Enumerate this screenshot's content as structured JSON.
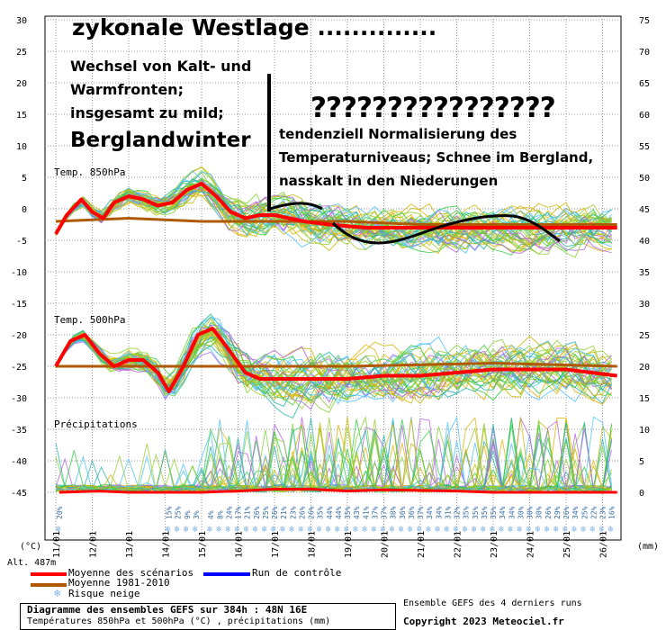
{
  "chart_data": {
    "type": "line",
    "title": "Diagramme des ensembles GEFS sur 384h : 48N 16E",
    "subtitle": "Températures 850hPa et 500hPa (°C) , précipitations (mm)",
    "left_axis_ticks": [
      30,
      25,
      20,
      15,
      10,
      5,
      0,
      -5,
      -10,
      -15,
      -20,
      -25,
      -30,
      -35,
      -40,
      -45
    ],
    "left_axis_unit": "(°C)",
    "right_axis_ticks": [
      75,
      70,
      65,
      60,
      55,
      50,
      45,
      40,
      35,
      30,
      25,
      20,
      15,
      10,
      5,
      0
    ],
    "right_axis_unit": "(mm)",
    "altitude_label": "Alt. 487m",
    "x_dates": [
      "11/01",
      "12/01",
      "13/01",
      "14/01",
      "15/01",
      "16/01",
      "17/01",
      "18/01",
      "19/01",
      "20/01",
      "21/01",
      "22/01",
      "23/01",
      "24/01",
      "25/01",
      "26/01"
    ],
    "panel_labels": [
      "Temp. 850hPa",
      "Temp. 500hPa",
      "Précipitations"
    ],
    "series": [
      {
        "name": "Moyenne des scénarios",
        "color": "#ff0000",
        "t850": [
          [
            0,
            -4
          ],
          [
            0.3,
            -1
          ],
          [
            0.7,
            1.5
          ],
          [
            1.0,
            -0.5
          ],
          [
            1.3,
            -1.5
          ],
          [
            1.6,
            1
          ],
          [
            2.0,
            2
          ],
          [
            2.4,
            1.5
          ],
          [
            2.8,
            0.5
          ],
          [
            3.2,
            1
          ],
          [
            3.6,
            3
          ],
          [
            4.0,
            4
          ],
          [
            4.4,
            2
          ],
          [
            4.8,
            -0.5
          ],
          [
            5.2,
            -1.5
          ],
          [
            5.6,
            -1
          ],
          [
            6.0,
            -1
          ],
          [
            6.4,
            -1.5
          ],
          [
            6.8,
            -2
          ],
          [
            7.5,
            -2.5
          ],
          [
            8.5,
            -3
          ],
          [
            9.5,
            -3
          ],
          [
            10.5,
            -3
          ],
          [
            11.5,
            -3
          ],
          [
            12.5,
            -3
          ],
          [
            13.5,
            -3
          ],
          [
            14.5,
            -3
          ],
          [
            15.4,
            -3
          ]
        ],
        "t500": [
          [
            0,
            -25
          ],
          [
            0.4,
            -21
          ],
          [
            0.8,
            -20
          ],
          [
            1.2,
            -23
          ],
          [
            1.6,
            -25
          ],
          [
            2.0,
            -24
          ],
          [
            2.4,
            -24
          ],
          [
            2.8,
            -26
          ],
          [
            3.1,
            -29
          ],
          [
            3.5,
            -25
          ],
          [
            3.9,
            -20
          ],
          [
            4.3,
            -19
          ],
          [
            4.7,
            -22
          ],
          [
            5.2,
            -26
          ],
          [
            5.6,
            -27
          ],
          [
            6.0,
            -27
          ],
          [
            7,
            -27
          ],
          [
            8,
            -27
          ],
          [
            9,
            -26.5
          ],
          [
            10,
            -26.5
          ],
          [
            11,
            -26
          ],
          [
            12,
            -25.5
          ],
          [
            13,
            -25.5
          ],
          [
            14,
            -25.5
          ],
          [
            15.4,
            -26.5
          ]
        ],
        "precip": [
          [
            0.1,
            -45
          ],
          [
            1.2,
            -44.8
          ],
          [
            2,
            -45
          ],
          [
            4,
            -45
          ],
          [
            5,
            -44.8
          ],
          [
            6,
            -44.5
          ],
          [
            7,
            -44.5
          ],
          [
            8,
            -44.8
          ],
          [
            9,
            -44.6
          ],
          [
            10,
            -44.7
          ],
          [
            11,
            -44.8
          ],
          [
            12,
            -45
          ],
          [
            13,
            -45
          ],
          [
            14,
            -45
          ],
          [
            15.4,
            -45
          ]
        ]
      },
      {
        "name": "Moyenne 1981-2010",
        "color": "#b05a00",
        "t850": [
          [
            0,
            -2
          ],
          [
            2,
            -1.5
          ],
          [
            4,
            -2
          ],
          [
            6,
            -2
          ],
          [
            8,
            -2
          ],
          [
            10,
            -2.5
          ],
          [
            12,
            -2.5
          ],
          [
            14,
            -2.5
          ],
          [
            15.4,
            -2.5
          ]
        ],
        "t500": [
          [
            0,
            -25
          ],
          [
            4,
            -25
          ],
          [
            8,
            -25
          ],
          [
            12,
            -24.5
          ],
          [
            15.4,
            -25
          ]
        ],
        "precip": []
      },
      {
        "name": "Run de contrôle",
        "color": "#0000ff",
        "t850": [],
        "t500": [],
        "precip": []
      }
    ],
    "risque_neige_label": "Risque neige",
    "snow_risk": [
      {
        "x": 0.1,
        "pct": "20%"
      },
      {
        "x": 3.1,
        "pct": "15%"
      },
      {
        "x": 3.35,
        "pct": "25%"
      },
      {
        "x": 3.6,
        "pct": "9%"
      },
      {
        "x": 3.85,
        "pct": "3%"
      },
      {
        "x": 4.25,
        "pct": "4%"
      },
      {
        "x": 4.5,
        "pct": "8%"
      },
      {
        "x": 4.75,
        "pct": "24%"
      },
      {
        "x": 5.0,
        "pct": "17%"
      },
      {
        "x": 5.25,
        "pct": "21%"
      },
      {
        "x": 5.5,
        "pct": "26%"
      },
      {
        "x": 5.75,
        "pct": "25%"
      },
      {
        "x": 6.0,
        "pct": "26%"
      },
      {
        "x": 6.25,
        "pct": "21%"
      },
      {
        "x": 6.5,
        "pct": "23%"
      },
      {
        "x": 6.75,
        "pct": "26%"
      },
      {
        "x": 7.0,
        "pct": "26%"
      },
      {
        "x": 7.25,
        "pct": "35%"
      },
      {
        "x": 7.5,
        "pct": "44%"
      },
      {
        "x": 7.75,
        "pct": "44%"
      },
      {
        "x": 8.0,
        "pct": "35%"
      },
      {
        "x": 8.25,
        "pct": "43%"
      },
      {
        "x": 8.5,
        "pct": "41%"
      },
      {
        "x": 8.75,
        "pct": "37%"
      },
      {
        "x": 9.0,
        "pct": "37%"
      },
      {
        "x": 9.25,
        "pct": "38%"
      },
      {
        "x": 9.5,
        "pct": "36%"
      },
      {
        "x": 9.75,
        "pct": "36%"
      },
      {
        "x": 10.0,
        "pct": "37%"
      },
      {
        "x": 10.25,
        "pct": "34%"
      },
      {
        "x": 10.5,
        "pct": "34%"
      },
      {
        "x": 10.75,
        "pct": "31%"
      },
      {
        "x": 11.0,
        "pct": "32%"
      },
      {
        "x": 11.25,
        "pct": "35%"
      },
      {
        "x": 11.5,
        "pct": "35%"
      },
      {
        "x": 11.75,
        "pct": "35%"
      },
      {
        "x": 12.0,
        "pct": "35%"
      },
      {
        "x": 12.25,
        "pct": "34%"
      },
      {
        "x": 12.5,
        "pct": "34%"
      },
      {
        "x": 12.75,
        "pct": "30%"
      },
      {
        "x": 13.0,
        "pct": "30%"
      },
      {
        "x": 13.25,
        "pct": "30%"
      },
      {
        "x": 13.5,
        "pct": "26%"
      },
      {
        "x": 13.75,
        "pct": "29%"
      },
      {
        "x": 14.0,
        "pct": "26%"
      },
      {
        "x": 14.25,
        "pct": "34%"
      },
      {
        "x": 14.5,
        "pct": "25%"
      },
      {
        "x": 14.75,
        "pct": "22%"
      },
      {
        "x": 15.0,
        "pct": "23%"
      },
      {
        "x": 15.25,
        "pct": "16%"
      }
    ],
    "grid": true
  },
  "annotations": {
    "headline": "zykonale Westlage ..............",
    "fronts_line1": "Wechsel von Kalt- und",
    "fronts_line2": "Warmfronten;",
    "fronts_line3": "insgesamt zu mild;",
    "berglandwinter": "Berglandwinter",
    "question": "????????????????",
    "trend_line1": "tendenziell Normalisierung des",
    "trend_line2": "Temperaturniveaus; Schnee im Bergland,",
    "trend_line3": "nasskalt in den Niederungen"
  },
  "footer": {
    "title": "Diagramme des ensembles GEFS sur 384h : 48N 16E",
    "subtitle": "Températures 850hPa et 500hPa (°C) , précipitations (mm)",
    "ensemble_note": "Ensemble GEFS des 4 derniers runs",
    "copyright": "Copyright 2023 Meteociel.fr"
  }
}
